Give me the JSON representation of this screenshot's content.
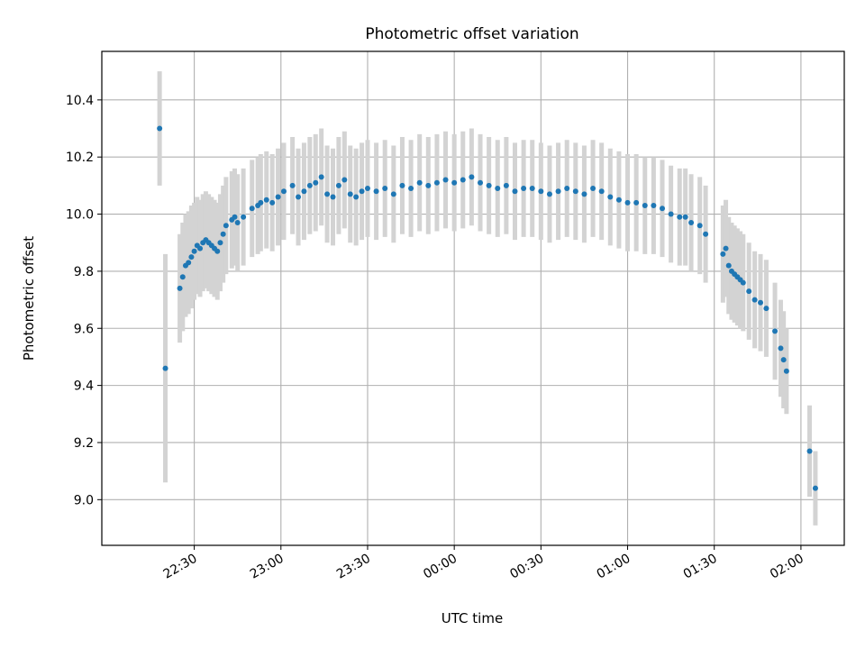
{
  "chart_data": {
    "type": "scatter",
    "title": "Photometric offset variation",
    "xlabel": "UTC time",
    "ylabel": "Photometric offset",
    "x_is_time": true,
    "x_reference_date": "2000-01-01",
    "xlim": [
      "21:58",
      "02:15"
    ],
    "ylim": [
      8.84,
      10.57
    ],
    "xticks": [
      "22:30",
      "23:00",
      "23:30",
      "00:00",
      "00:30",
      "01:00",
      "01:30",
      "02:00"
    ],
    "yticks": [
      "9.0",
      "9.2",
      "9.4",
      "9.6",
      "9.8",
      "10.0",
      "10.2",
      "10.4"
    ],
    "grid": true,
    "point_color": "#1f77b4",
    "errorbar_color": "#d3d3d3",
    "series": [
      {
        "x": [
          "22:18",
          "22:20",
          "22:25",
          "22:26",
          "22:27",
          "22:28",
          "22:29",
          "22:30",
          "22:31",
          "22:32",
          "22:33",
          "22:34",
          "22:35",
          "22:36",
          "22:37",
          "22:38",
          "22:39",
          "22:40",
          "22:41",
          "22:43",
          "22:44",
          "22:45",
          "22:47",
          "22:50",
          "22:52",
          "22:53",
          "22:55",
          "22:57",
          "22:59",
          "23:01",
          "23:04",
          "23:06",
          "23:08",
          "23:10",
          "23:12",
          "23:14",
          "23:16",
          "23:18",
          "23:20",
          "23:22",
          "23:24",
          "23:26",
          "23:28",
          "23:30",
          "23:33",
          "23:36",
          "23:39",
          "23:42",
          "23:45",
          "23:48",
          "23:51",
          "23:54",
          "23:57",
          "00:00",
          "00:03",
          "00:06",
          "00:09",
          "00:12",
          "00:15",
          "00:18",
          "00:21",
          "00:24",
          "00:27",
          "00:30",
          "00:33",
          "00:36",
          "00:39",
          "00:42",
          "00:45",
          "00:48",
          "00:51",
          "00:54",
          "00:57",
          "01:00",
          "01:03",
          "01:06",
          "01:09",
          "01:12",
          "01:15",
          "01:18",
          "01:20",
          "01:22",
          "01:25",
          "01:27",
          "01:33",
          "01:34",
          "01:35",
          "01:36",
          "01:37",
          "01:38",
          "01:39",
          "01:40",
          "01:42",
          "01:44",
          "01:46",
          "01:48",
          "01:51",
          "01:53",
          "01:54",
          "01:55",
          "02:03",
          "02:05"
        ],
        "y": [
          10.3,
          9.46,
          9.74,
          9.78,
          9.82,
          9.83,
          9.85,
          9.87,
          9.89,
          9.88,
          9.9,
          9.91,
          9.9,
          9.89,
          9.88,
          9.87,
          9.9,
          9.93,
          9.96,
          9.98,
          9.99,
          9.97,
          9.99,
          10.02,
          10.03,
          10.04,
          10.05,
          10.04,
          10.06,
          10.08,
          10.1,
          10.06,
          10.08,
          10.1,
          10.11,
          10.13,
          10.07,
          10.06,
          10.1,
          10.12,
          10.07,
          10.06,
          10.08,
          10.09,
          10.08,
          10.09,
          10.07,
          10.1,
          10.09,
          10.11,
          10.1,
          10.11,
          10.12,
          10.11,
          10.12,
          10.13,
          10.11,
          10.1,
          10.09,
          10.1,
          10.08,
          10.09,
          10.09,
          10.08,
          10.07,
          10.08,
          10.09,
          10.08,
          10.07,
          10.09,
          10.08,
          10.06,
          10.05,
          10.04,
          10.04,
          10.03,
          10.03,
          10.02,
          10.0,
          9.99,
          9.99,
          9.97,
          9.96,
          9.93,
          9.86,
          9.88,
          9.82,
          9.8,
          9.79,
          9.78,
          9.77,
          9.76,
          9.73,
          9.7,
          9.69,
          9.67,
          9.59,
          9.53,
          9.49,
          9.45,
          9.17,
          9.04
        ],
        "error": [
          0.2,
          0.4,
          0.19,
          0.19,
          0.18,
          0.18,
          0.18,
          0.17,
          0.17,
          0.17,
          0.17,
          0.17,
          0.17,
          0.17,
          0.17,
          0.17,
          0.17,
          0.17,
          0.17,
          0.17,
          0.17,
          0.17,
          0.17,
          0.17,
          0.17,
          0.17,
          0.17,
          0.17,
          0.17,
          0.17,
          0.17,
          0.17,
          0.17,
          0.17,
          0.17,
          0.17,
          0.17,
          0.17,
          0.17,
          0.17,
          0.17,
          0.17,
          0.17,
          0.17,
          0.17,
          0.17,
          0.17,
          0.17,
          0.17,
          0.17,
          0.17,
          0.17,
          0.17,
          0.17,
          0.17,
          0.17,
          0.17,
          0.17,
          0.17,
          0.17,
          0.17,
          0.17,
          0.17,
          0.17,
          0.17,
          0.17,
          0.17,
          0.17,
          0.17,
          0.17,
          0.17,
          0.17,
          0.17,
          0.17,
          0.17,
          0.17,
          0.17,
          0.17,
          0.17,
          0.17,
          0.17,
          0.17,
          0.17,
          0.17,
          0.17,
          0.17,
          0.17,
          0.17,
          0.17,
          0.17,
          0.17,
          0.17,
          0.17,
          0.17,
          0.17,
          0.17,
          0.17,
          0.17,
          0.17,
          0.15,
          0.16,
          0.13
        ]
      }
    ]
  }
}
